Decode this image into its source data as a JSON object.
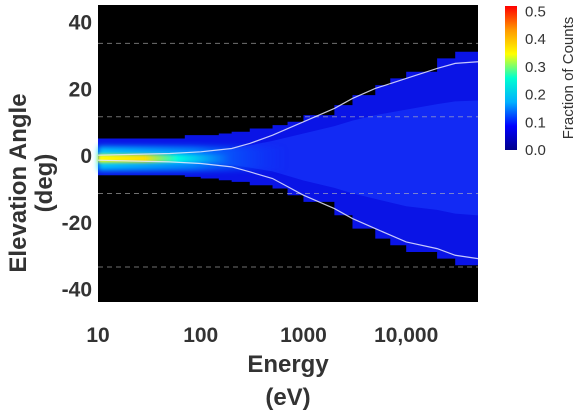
{
  "chart_data": {
    "type": "heatmap",
    "xlabel_line1": "Energy",
    "xlabel_line2": "(eV)",
    "ylabel_line1": "Elevation Angle",
    "ylabel_line2": "(deg)",
    "x_scale": "log",
    "xlim": [
      10,
      50000
    ],
    "ylim": [
      -44,
      45
    ],
    "x_ticks": [
      {
        "value": 10,
        "label": "10"
      },
      {
        "value": 100,
        "label": "100"
      },
      {
        "value": 1000,
        "label": "1000"
      },
      {
        "value": 10000,
        "label": "10,000"
      }
    ],
    "y_ticks": [
      {
        "value": 40,
        "label": "40"
      },
      {
        "value": 20,
        "label": "20"
      },
      {
        "value": 0,
        "label": "0"
      },
      {
        "value": -20,
        "label": "-20"
      },
      {
        "value": -40,
        "label": "-40"
      }
    ],
    "dashed_gridlines_y": [
      33.5,
      11.5,
      -11.5,
      -33.5
    ],
    "background_color": "#000000",
    "distribution_envelope": {
      "energy": [
        10,
        20,
        40,
        70,
        100,
        150,
        200,
        300,
        500,
        700,
        1000,
        2000,
        3000,
        5000,
        7000,
        10000,
        20000,
        30000,
        50000
      ],
      "upper_deg": [
        5,
        5,
        5,
        6,
        6,
        6.5,
        7,
        8,
        9,
        10,
        12,
        15,
        18,
        21,
        23,
        25,
        29,
        31,
        32
      ],
      "lower_deg": [
        -6,
        -6,
        -6,
        -6.5,
        -7,
        -7.5,
        -8,
        -9,
        -10,
        -12,
        -14,
        -18,
        -22,
        -25,
        -27,
        -29,
        -31,
        -33,
        -34
      ]
    },
    "median_curves": {
      "energy": [
        10,
        50,
        100,
        200,
        300,
        500,
        1000,
        2000,
        3000,
        5000,
        10000,
        20000,
        30000,
        50000
      ],
      "upper_deg": [
        0,
        0.5,
        1,
        2,
        3.5,
        6,
        10,
        14,
        17,
        20,
        23,
        26,
        27.5,
        28
      ],
      "lower_deg": [
        -1.5,
        -2,
        -2.5,
        -3.5,
        -5,
        -7,
        -12,
        -16,
        -19,
        -22,
        -26,
        -28,
        -30,
        -31
      ]
    },
    "core_peak": {
      "energy_max": 100,
      "angle_deg": -1,
      "value": 0.4
    },
    "colorbar": {
      "label": "Fraction of Counts",
      "min": 0.0,
      "max": 0.52,
      "ticks": [
        {
          "value": 0.5,
          "label": "0.5"
        },
        {
          "value": 0.4,
          "label": "0.4"
        },
        {
          "value": 0.3,
          "label": "0.3"
        },
        {
          "value": 0.2,
          "label": "0.2"
        },
        {
          "value": 0.1,
          "label": "0.1"
        },
        {
          "value": 0.0,
          "label": "0.0"
        }
      ],
      "colormap": [
        "#00008b",
        "#0000ff",
        "#00b0ff",
        "#00ffd0",
        "#ffff00",
        "#ff9900",
        "#ff0000"
      ]
    }
  }
}
